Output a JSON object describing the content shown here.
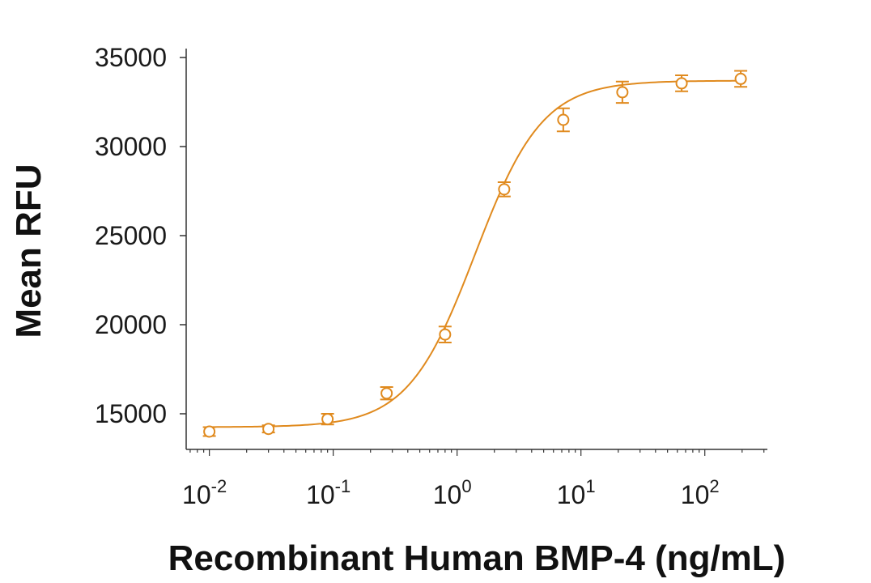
{
  "chart_data": {
    "type": "scatter",
    "title": "",
    "xlabel": "Recombinant Human BMP-4 (ng/mL)",
    "ylabel": "Mean RFU",
    "xscale": "log",
    "xlim": [
      0.0065,
      320
    ],
    "ylim": [
      13000,
      35500
    ],
    "x_ticks": [
      {
        "value": 0.01,
        "base": "10",
        "exp": "-2"
      },
      {
        "value": 0.1,
        "base": "10",
        "exp": "-1"
      },
      {
        "value": 1,
        "base": "10",
        "exp": "0"
      },
      {
        "value": 10,
        "base": "10",
        "exp": "1"
      },
      {
        "value": 100,
        "base": "10",
        "exp": "2"
      }
    ],
    "y_ticks": [
      15000,
      20000,
      25000,
      30000,
      35000
    ],
    "y_tick_labels": [
      "15000",
      "20000",
      "25000",
      "30000",
      "35000"
    ],
    "grid": false,
    "legend": "none",
    "color": "#e08a1e",
    "series": [
      {
        "points": [
          {
            "x": 0.01,
            "y": 14000,
            "err": 250
          },
          {
            "x": 0.03,
            "y": 14150,
            "err": 200
          },
          {
            "x": 0.09,
            "y": 14700,
            "err": 300
          },
          {
            "x": 0.27,
            "y": 16150,
            "err": 350
          },
          {
            "x": 0.8,
            "y": 19450,
            "err": 450
          },
          {
            "x": 2.4,
            "y": 27600,
            "err": 400
          },
          {
            "x": 7.2,
            "y": 31500,
            "err": 650
          },
          {
            "x": 21.6,
            "y": 33050,
            "err": 600
          },
          {
            "x": 65,
            "y": 33550,
            "err": 450
          },
          {
            "x": 195,
            "y": 33800,
            "err": 450
          }
        ],
        "fit": {
          "bottom": 14250,
          "top": 33700,
          "ec50": 1.4,
          "hill": 1.6
        }
      }
    ]
  }
}
